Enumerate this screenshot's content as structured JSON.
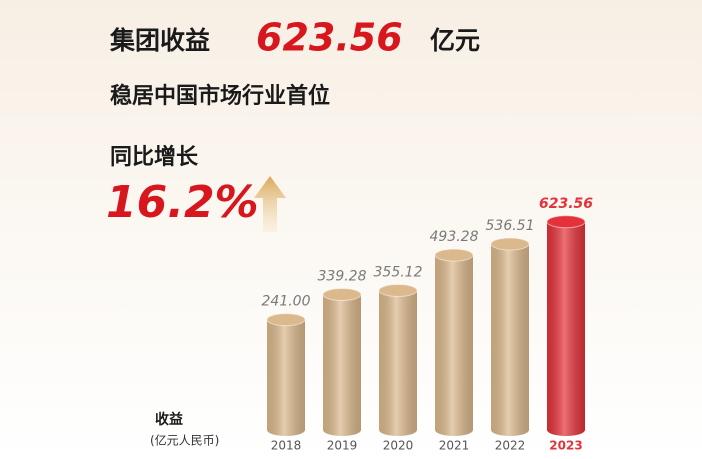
{
  "chart_data": {
    "type": "bar",
    "headline": {
      "prefix": "集团收益",
      "number": "623.56",
      "unit": "亿元"
    },
    "subtitle": "稳居中国市场行业首位",
    "growth_label": "同比增长",
    "growth_value": "16.2%",
    "y_label": "收益",
    "y_unit": "(亿元人民币)",
    "categories": [
      "2018",
      "2019",
      "2020",
      "2021",
      "2022",
      "2023"
    ],
    "values": [
      241.0,
      339.28,
      355.12,
      493.28,
      536.51,
      623.56
    ],
    "value_labels": [
      "241.00",
      "339.28",
      "355.12",
      "493.28",
      "536.51",
      "623.56"
    ],
    "color": "#dcb98c",
    "colors": [
      "#dcb98c",
      "#dcb98c",
      "#dcb98c",
      "#dcb98c",
      "#dcb98c",
      "#e5323a"
    ],
    "ylim": [
      -190,
      650
    ]
  }
}
